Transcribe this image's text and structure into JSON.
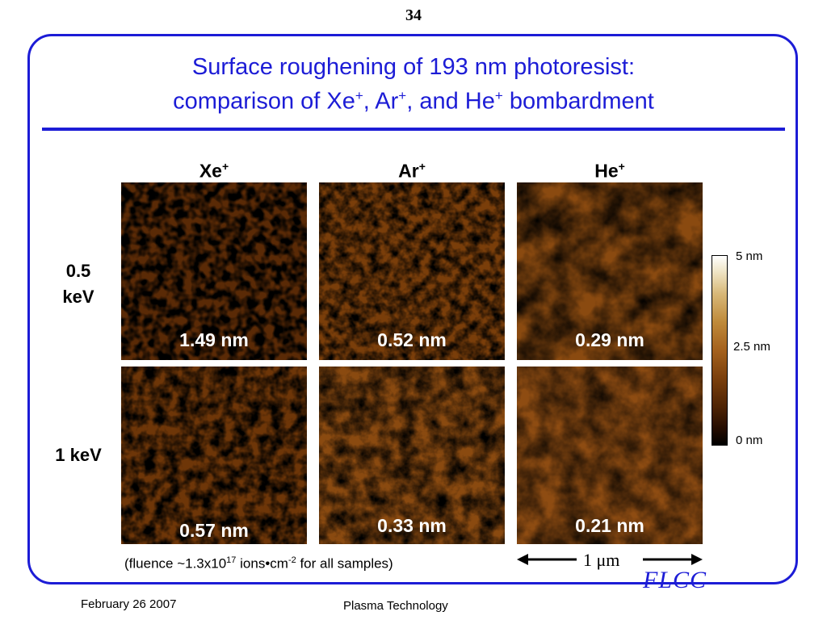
{
  "page_number": "34",
  "title": {
    "line1": "Surface roughening of 193 nm photoresist:",
    "line2_prefix": "comparison of Xe",
    "sep1": ", Ar",
    "sep2": ", and He",
    "line2_suffix": " bombardment",
    "charge": "+"
  },
  "columns": [
    {
      "ion": "Xe",
      "charge": "+"
    },
    {
      "ion": "Ar",
      "charge": "+"
    },
    {
      "ion": "He",
      "charge": "+"
    }
  ],
  "rows": [
    {
      "energy_line1": "0.5",
      "energy_line2": "keV"
    },
    {
      "energy_line1": "1 keV",
      "energy_line2": ""
    }
  ],
  "panels": [
    {
      "roughness": "1.49 nm",
      "level": 1.0
    },
    {
      "roughness": "0.52 nm",
      "level": 0.55
    },
    {
      "roughness": "0.29 nm",
      "level": 0.3
    },
    {
      "roughness": "0.57 nm",
      "level": 0.6
    },
    {
      "roughness": "0.33 nm",
      "level": 0.35
    },
    {
      "roughness": "0.21 nm",
      "level": 0.22
    }
  ],
  "colorbar": {
    "top_label": "5 nm",
    "mid_label": "2.5 nm",
    "bottom_label": "0 nm"
  },
  "fluence_note": {
    "prefix": "(fluence ~1.3x10",
    "exp1": "17",
    "middle": " ions•cm",
    "exp2": "-2",
    "suffix": " for all samples)"
  },
  "scale_bar": {
    "label": "1 μm"
  },
  "logo_text": "FLCC",
  "footer": {
    "date": "February 26 2007",
    "center": "Plasma Technology"
  },
  "colors": {
    "accent": "#1c1cd6"
  }
}
